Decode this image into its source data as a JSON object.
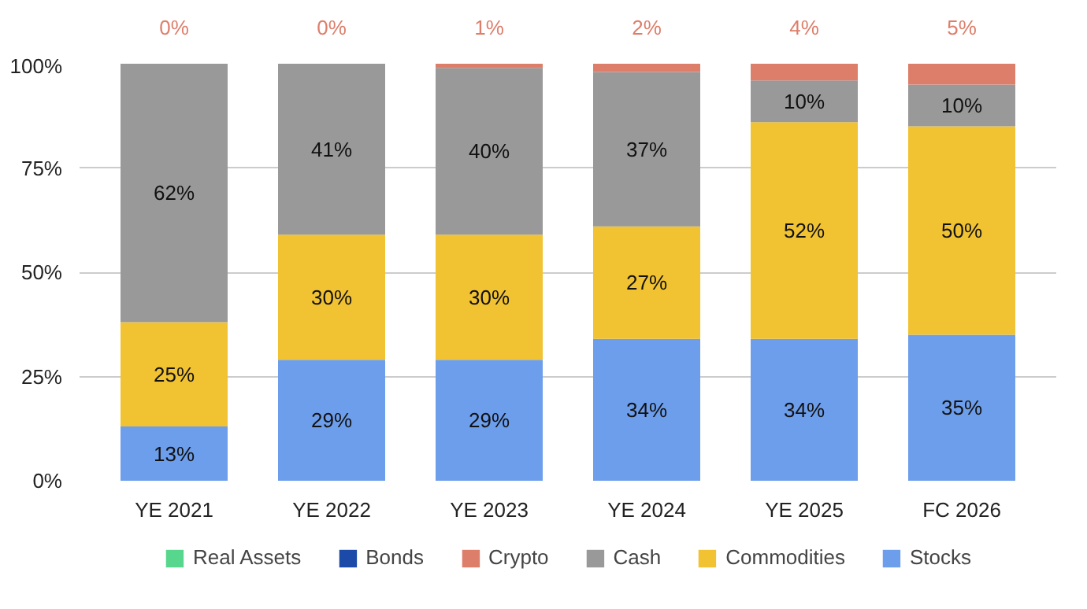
{
  "chart_data": {
    "type": "bar",
    "stacked": true,
    "categories": [
      "YE 2021",
      "YE 2022",
      "YE 2023",
      "YE 2024",
      "YE 2025",
      "FC 2026"
    ],
    "series": [
      {
        "name": "Stocks",
        "color": "#6d9eeb",
        "values": [
          13,
          29,
          29,
          34,
          34,
          35
        ],
        "value_labels": [
          "13%",
          "29%",
          "29%",
          "34%",
          "34%",
          "35%"
        ]
      },
      {
        "name": "Commodities",
        "color": "#f1c232",
        "values": [
          25,
          30,
          30,
          27,
          52,
          50
        ],
        "value_labels": [
          "25%",
          "30%",
          "30%",
          "27%",
          "52%",
          "50%"
        ]
      },
      {
        "name": "Cash",
        "color": "#999999",
        "values": [
          62,
          41,
          40,
          37,
          10,
          10
        ],
        "value_labels": [
          "62%",
          "41%",
          "40%",
          "37%",
          "10%",
          "10%"
        ]
      },
      {
        "name": "Crypto",
        "color": "#dd7e6b",
        "values": [
          0,
          0,
          1,
          2,
          4,
          5
        ],
        "value_labels": [
          "0%",
          "0%",
          "1%",
          "2%",
          "4%",
          "5%"
        ]
      },
      {
        "name": "Bonds",
        "color": "#1c4aa8",
        "values": [
          0,
          0,
          0,
          0,
          0,
          0
        ]
      },
      {
        "name": "Real Assets",
        "color": "#57d68d",
        "values": [
          0,
          0,
          0,
          0,
          0,
          0
        ]
      }
    ],
    "ylim": [
      0,
      100
    ],
    "yticks": [
      {
        "value": 0,
        "label": "0%"
      },
      {
        "value": 25,
        "label": "25%"
      },
      {
        "value": 50,
        "label": "50%"
      },
      {
        "value": 75,
        "label": "75%"
      },
      {
        "value": 100,
        "label": "100%"
      }
    ],
    "grid": "y",
    "legend": "bottom"
  }
}
